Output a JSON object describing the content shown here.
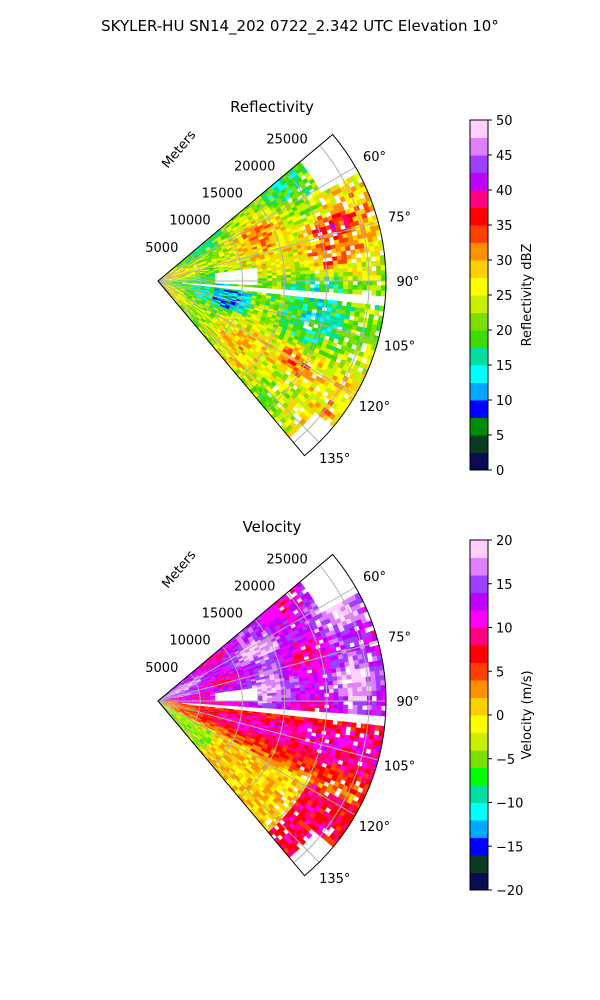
{
  "figure_title": "SKYLER-HU  SN14_202  0722_2.342 UTC Elevation 10°",
  "colors": {
    "grid": "#b0b0b0",
    "frame": "#000000",
    "background": "#ffffff"
  },
  "chart_data": [
    {
      "type": "heatmap",
      "subtype": "polar-sector-ppi",
      "title": "Reflectivity",
      "radial_axis_label": "Meters",
      "radial_ticks": [
        5000,
        10000,
        15000,
        20000,
        25000
      ],
      "radial_tick_labels": [
        "5000",
        "10000",
        "15000",
        "20000",
        "25000"
      ],
      "radial_range": [
        0,
        27000
      ],
      "azimuth_range_deg": [
        50,
        140
      ],
      "azimuth_ticks": [
        60,
        75,
        90,
        105,
        120,
        135
      ],
      "azimuth_tick_labels": [
        "60°",
        "75°",
        "90°",
        "105°",
        "120°",
        "135°"
      ],
      "grid": true,
      "colorbar": {
        "label": "Reflectivity dBZ",
        "range": [
          0,
          50
        ],
        "ticks": [
          0,
          5,
          10,
          15,
          20,
          25,
          30,
          35,
          40,
          45,
          50
        ],
        "tick_labels": [
          "0",
          "5",
          "10",
          "15",
          "20",
          "25",
          "30",
          "35",
          "40",
          "45",
          "50"
        ],
        "colormap": [
          "#0a0a55",
          "#0b3a24",
          "#008c00",
          "#0000ff",
          "#00a8ff",
          "#00ffff",
          "#00e0a0",
          "#3cdc00",
          "#7fe000",
          "#c8f000",
          "#ffff00",
          "#ffd000",
          "#ff9000",
          "#ff4000",
          "#ff0000",
          "#ff0080",
          "#c000ff",
          "#a040ff",
          "#e080ff",
          "#ffd0ff"
        ]
      },
      "features": [
        {
          "description": "broad 20-30 dBZ echo",
          "azimuth_range_deg": [
            52,
            138
          ],
          "range_m": [
            0,
            27000
          ],
          "typical_value": 24
        },
        {
          "description": "core",
          "azimuth_deg": 73,
          "range_m": 21000,
          "max_value": 36
        },
        {
          "description": "core",
          "azimuth_deg": 83,
          "range_m": 20000,
          "max_value": 37
        },
        {
          "description": "core",
          "azimuth_deg": 120,
          "range_m": 19000,
          "max_value": 36
        },
        {
          "description": "weak echo gap",
          "azimuth_deg": 88,
          "range_m": [
            6500,
            12000
          ]
        },
        {
          "description": "beam blockage line",
          "azimuth_deg": 95,
          "range_m": [
            3000,
            27000
          ]
        }
      ]
    },
    {
      "type": "heatmap",
      "subtype": "polar-sector-ppi",
      "title": "Velocity",
      "radial_axis_label": "Meters",
      "radial_ticks": [
        5000,
        10000,
        15000,
        20000,
        25000
      ],
      "radial_tick_labels": [
        "5000",
        "10000",
        "15000",
        "20000",
        "25000"
      ],
      "radial_range": [
        0,
        27000
      ],
      "azimuth_range_deg": [
        50,
        140
      ],
      "azimuth_ticks": [
        60,
        75,
        90,
        105,
        120,
        135
      ],
      "azimuth_tick_labels": [
        "60°",
        "75°",
        "90°",
        "105°",
        "120°",
        "135°"
      ],
      "grid": true,
      "colorbar": {
        "label": "Velocity (m/s)",
        "range": [
          -20,
          20
        ],
        "ticks": [
          -20,
          -15,
          -10,
          -5,
          0,
          5,
          10,
          15,
          20
        ],
        "tick_labels": [
          "−20",
          "−15",
          "−10",
          "−5",
          "0",
          "5",
          "10",
          "15",
          "20"
        ],
        "colormap": [
          "#0a0a55",
          "#0b3a24",
          "#0000ff",
          "#00a8ff",
          "#00ffff",
          "#00e0a0",
          "#00ff00",
          "#7fe000",
          "#c8f000",
          "#ffff00",
          "#ffd000",
          "#ff9000",
          "#ff4000",
          "#ff0000",
          "#ff0080",
          "#ff00ff",
          "#c000ff",
          "#a040ff",
          "#e080ff",
          "#ffd0ff"
        ]
      },
      "features": [
        {
          "description": "outbound (positive) flow",
          "azimuth_range_deg": [
            52,
            94
          ],
          "typical_value": 14
        },
        {
          "description": "inbound/near-zero flow",
          "azimuth_range_deg": [
            96,
            138
          ],
          "typical_value": 2
        },
        {
          "description": "strong positive band",
          "azimuth_range_deg": [
            92,
            118
          ],
          "range_m": [
            8000,
            27000
          ],
          "typical_value": 9
        }
      ]
    }
  ]
}
